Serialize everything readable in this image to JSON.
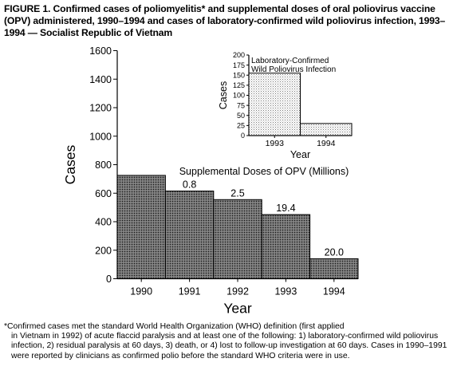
{
  "figure": {
    "title_lead": "FIGURE 1.",
    "title_text": "Confirmed cases of poliomyelitis* and supplemental doses of oral poliovirus vaccine (OPV) administered, 1990–1994 and cases of laboratory-confirmed wild poliovirus infection, 1993–1994 — Socialist Republic of Vietnam",
    "footnote_first": "*Confirmed cases met the standard World Health Organization (WHO) definition (first applied",
    "footnote_rest": "in Vietnam in 1992) of acute flaccid paralysis and at least one of the following: 1) laboratory-confirmed wild poliovirus infection, 2) residual paralysis at 60 days, 3) death, or 4) lost to follow-up investigation at 60 days. Cases in 1990–1991 were reported by clinicians as confirmed polio before the standard WHO criteria were in use."
  },
  "chart_data": [
    {
      "type": "bar",
      "categories": [
        "1990",
        "1991",
        "1992",
        "1993",
        "1994"
      ],
      "values": [
        725,
        615,
        555,
        450,
        140
      ],
      "ylabel": "Cases",
      "xlabel": "Year",
      "ylim": [
        0,
        1600
      ],
      "yticks": [
        "0",
        "200",
        "400",
        "600",
        "800",
        "1000",
        "1200",
        "1400",
        "1600"
      ],
      "annotation_title": "Supplemental Doses of OPV (Millions)",
      "data_labels": [
        "",
        "0.8",
        "2.5",
        "19.4",
        "20.0"
      ],
      "bar_fill": "dark-stipple",
      "grid": false
    },
    {
      "type": "bar",
      "title": "Laboratory-Confirmed Wild Poliovirus Infection",
      "categories": [
        "1993",
        "1994"
      ],
      "values": [
        155,
        30
      ],
      "ylabel": "Cases",
      "xlabel": "Year",
      "ylim": [
        0,
        200
      ],
      "yticks": [
        "0",
        "25",
        "50",
        "75",
        "100",
        "125",
        "150",
        "175",
        "200"
      ],
      "bar_fill": "light-stipple",
      "grid": false
    }
  ]
}
